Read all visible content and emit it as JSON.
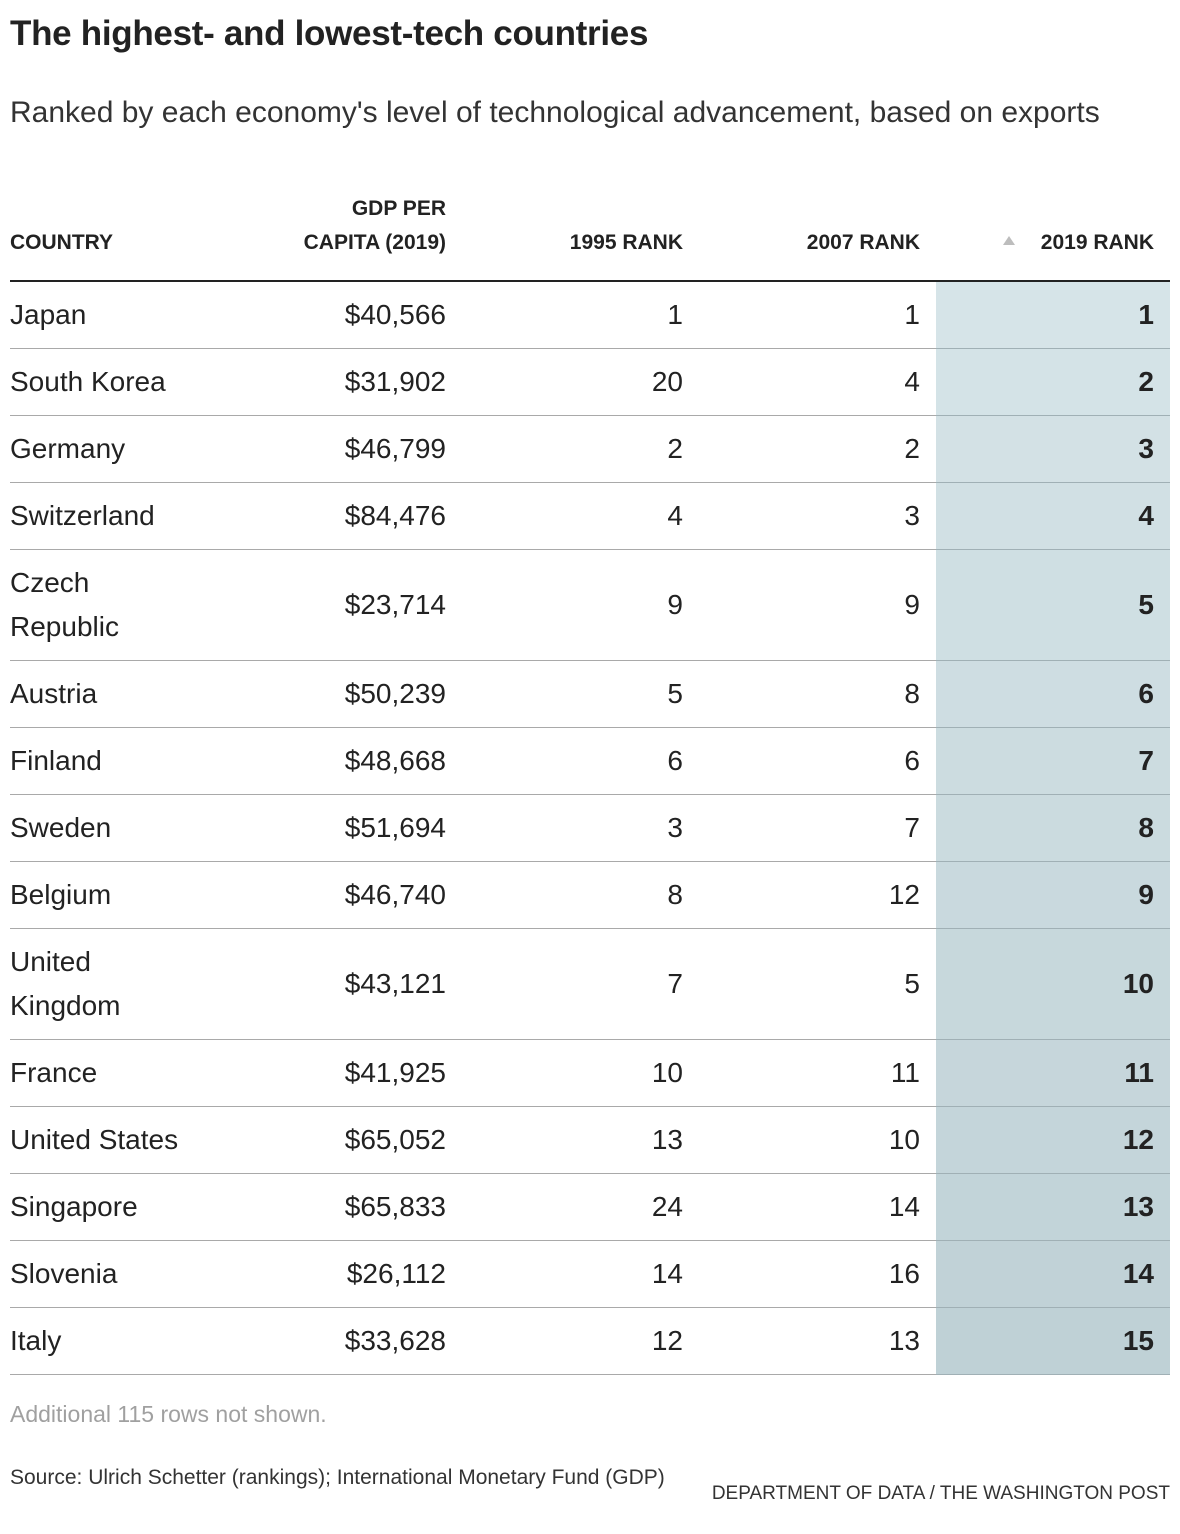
{
  "title": "The highest- and lowest-tech countries",
  "subtitle": "Ranked by each economy's level of technological advancement, based on exports",
  "columns": {
    "country": "COUNTRY",
    "gdp_line1": "GDP PER",
    "gdp_line2": "CAPITA (2019)",
    "rank1995": "1995 RANK",
    "rank2007": "2007 RANK",
    "rank2019": "2019 RANK"
  },
  "colors": {
    "highlight_top": "#d6e4e8",
    "highlight_bottom": "#bfd1d6"
  },
  "icons": {
    "sort": "sort-ascending-icon"
  },
  "chart_data": {
    "type": "table",
    "columns": [
      "COUNTRY",
      "GDP PER CAPITA (2019)",
      "1995 RANK",
      "2007 RANK",
      "2019 RANK"
    ],
    "sorted_by": "2019 RANK",
    "rows": [
      {
        "country": "Japan",
        "gdp": "$40,566",
        "rank1995": "1",
        "rank2007": "1",
        "rank2019": "1"
      },
      {
        "country": "South Korea",
        "gdp": "$31,902",
        "rank1995": "20",
        "rank2007": "4",
        "rank2019": "2"
      },
      {
        "country": "Germany",
        "gdp": "$46,799",
        "rank1995": "2",
        "rank2007": "2",
        "rank2019": "3"
      },
      {
        "country": "Switzerland",
        "gdp": "$84,476",
        "rank1995": "4",
        "rank2007": "3",
        "rank2019": "4"
      },
      {
        "country": "Czech Republic",
        "gdp": "$23,714",
        "rank1995": "9",
        "rank2007": "9",
        "rank2019": "5"
      },
      {
        "country": "Austria",
        "gdp": "$50,239",
        "rank1995": "5",
        "rank2007": "8",
        "rank2019": "6"
      },
      {
        "country": "Finland",
        "gdp": "$48,668",
        "rank1995": "6",
        "rank2007": "6",
        "rank2019": "7"
      },
      {
        "country": "Sweden",
        "gdp": "$51,694",
        "rank1995": "3",
        "rank2007": "7",
        "rank2019": "8"
      },
      {
        "country": "Belgium",
        "gdp": "$46,740",
        "rank1995": "8",
        "rank2007": "12",
        "rank2019": "9"
      },
      {
        "country": "United Kingdom",
        "gdp": "$43,121",
        "rank1995": "7",
        "rank2007": "5",
        "rank2019": "10"
      },
      {
        "country": "France",
        "gdp": "$41,925",
        "rank1995": "10",
        "rank2007": "11",
        "rank2019": "11"
      },
      {
        "country": "United States",
        "gdp": "$65,052",
        "rank1995": "13",
        "rank2007": "10",
        "rank2019": "12"
      },
      {
        "country": "Singapore",
        "gdp": "$65,833",
        "rank1995": "24",
        "rank2007": "14",
        "rank2019": "13"
      },
      {
        "country": "Slovenia",
        "gdp": "$26,112",
        "rank1995": "14",
        "rank2007": "16",
        "rank2019": "14"
      },
      {
        "country": "Italy",
        "gdp": "$33,628",
        "rank1995": "12",
        "rank2007": "13",
        "rank2019": "15"
      }
    ]
  },
  "note": "Additional 115 rows not shown.",
  "source": "Source: Ulrich Schetter (rankings); International Monetary Fund (GDP)",
  "credit": "DEPARTMENT OF DATA / THE WASHINGTON POST"
}
